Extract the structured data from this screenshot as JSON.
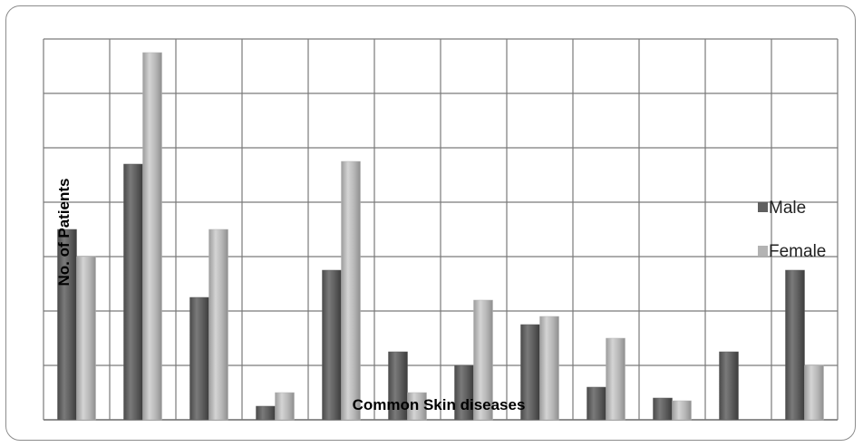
{
  "chart_data": {
    "type": "bar",
    "title": "",
    "xlabel": "Common Skin diseases",
    "ylabel": "No. of  Patients",
    "categories": [
      "",
      "",
      "",
      "",
      "",
      "",
      "",
      "",
      "",
      "",
      "",
      ""
    ],
    "series": [
      {
        "name": "Male",
        "color": "#5f5f5f",
        "values": [
          3.5,
          4.7,
          2.25,
          0.25,
          2.75,
          1.25,
          1.0,
          1.75,
          0.6,
          0.4,
          1.25,
          2.75
        ]
      },
      {
        "name": "Female",
        "color": "#b3b3b3",
        "values": [
          3.0,
          6.75,
          3.5,
          0.5,
          4.75,
          0.5,
          2.2,
          1.9,
          1.5,
          0.35,
          0.0,
          1.0
        ]
      }
    ],
    "ylim": [
      0,
      7
    ],
    "ytick_step": 1,
    "grid": true,
    "legend": "right"
  }
}
